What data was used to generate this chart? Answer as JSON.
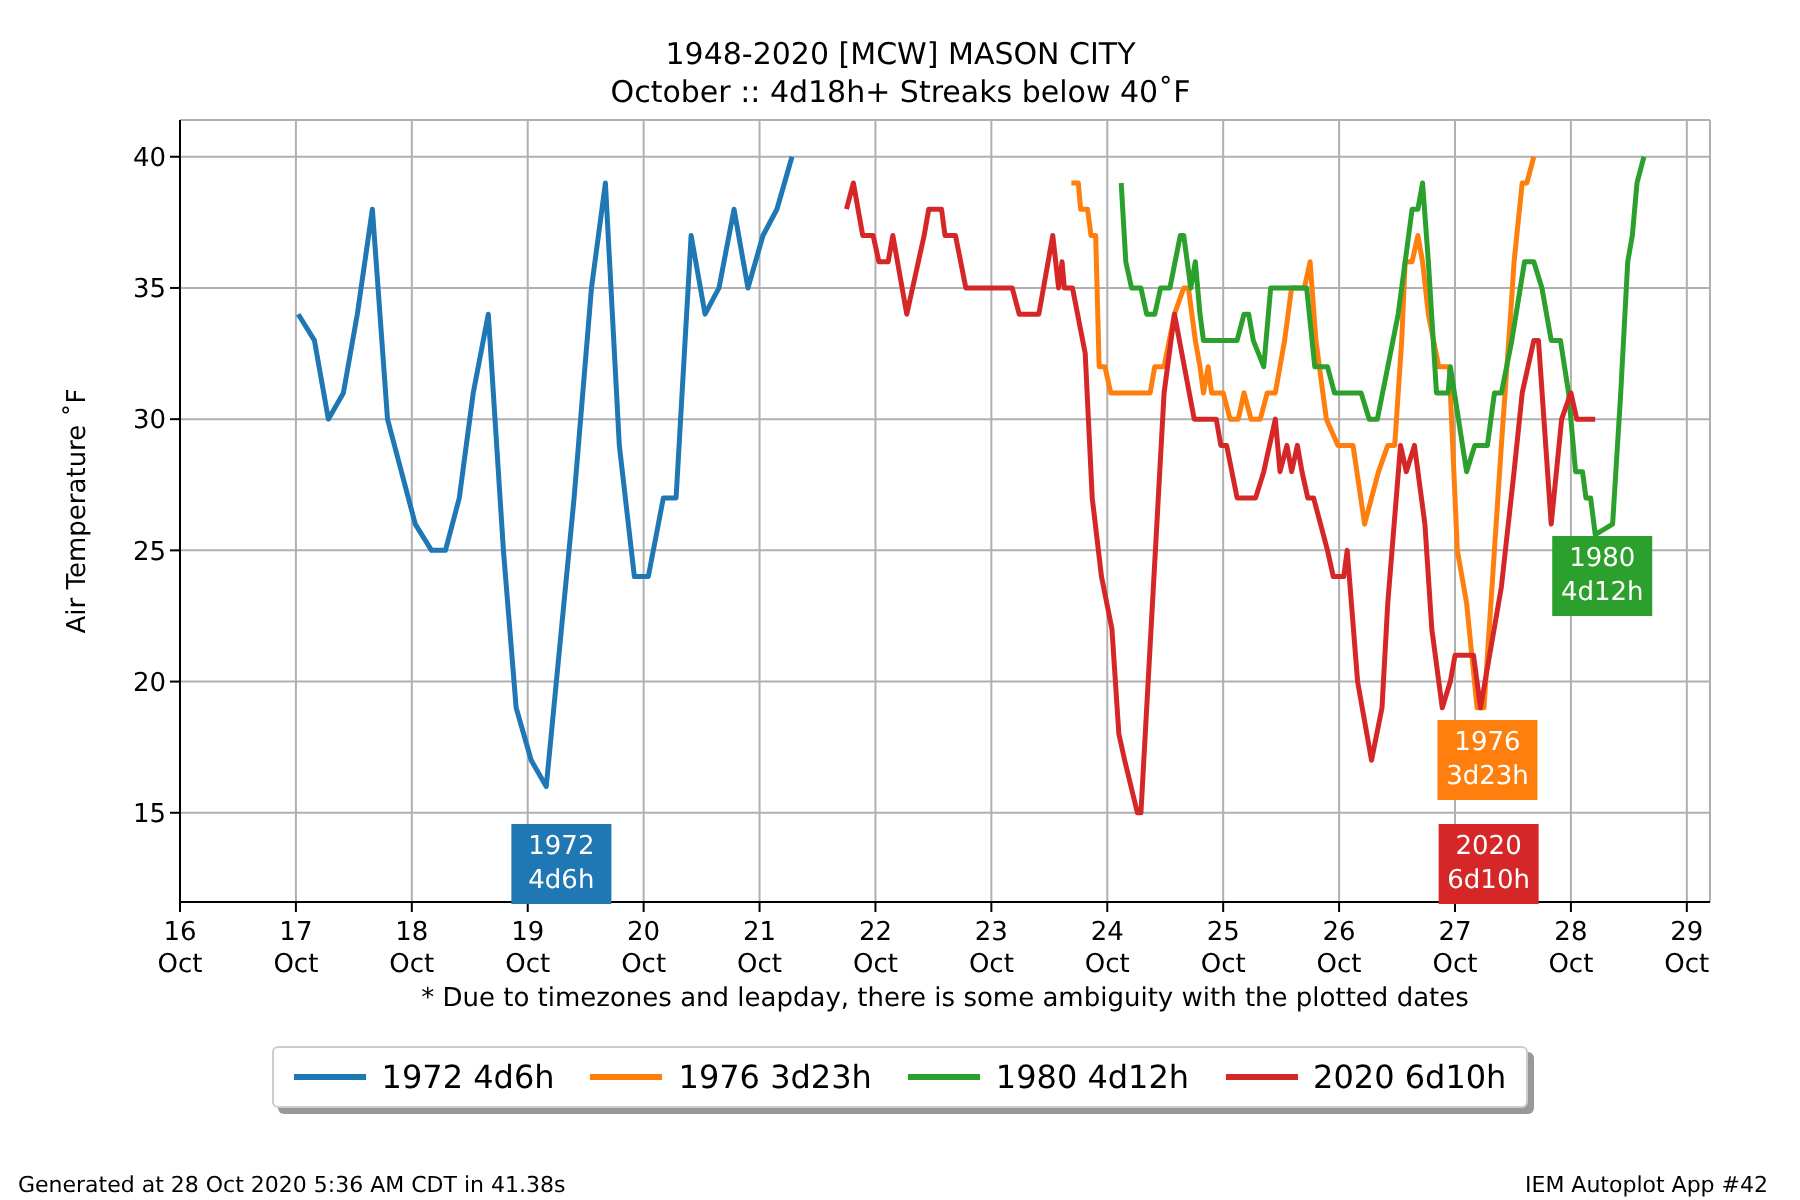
{
  "chart_data": {
    "type": "line",
    "title": "1948-2020 [MCW] MASON CITY",
    "subtitle": "October :: 4d18h+ Streaks below 40˚F",
    "ylabel": "Air Temperature ˚F",
    "xlim": [
      "--10-16",
      "--10-29T04:48"
    ],
    "ylim": [
      11.6,
      41.4
    ],
    "xticks": [
      {
        "value": "--10-16",
        "label": "16\nOct"
      },
      {
        "value": "--10-17",
        "label": "17\nOct"
      },
      {
        "value": "--10-18",
        "label": "18\nOct"
      },
      {
        "value": "--10-19",
        "label": "19\nOct"
      },
      {
        "value": "--10-20",
        "label": "20\nOct"
      },
      {
        "value": "--10-21",
        "label": "21\nOct"
      },
      {
        "value": "--10-22",
        "label": "22\nOct"
      },
      {
        "value": "--10-23",
        "label": "23\nOct"
      },
      {
        "value": "--10-24",
        "label": "24\nOct"
      },
      {
        "value": "--10-25",
        "label": "25\nOct"
      },
      {
        "value": "--10-26",
        "label": "26\nOct"
      },
      {
        "value": "--10-27",
        "label": "27\nOct"
      },
      {
        "value": "--10-28",
        "label": "28\nOct"
      },
      {
        "value": "--10-29",
        "label": "29\nOct"
      }
    ],
    "yticks": [
      15,
      20,
      25,
      30,
      35,
      40
    ],
    "grid": true,
    "legend": "bottom",
    "marker": "none",
    "line_style": "solid",
    "series": [
      {
        "name": "1972 4d6h",
        "color": "#1f77b4",
        "x": [
          "--10-17T00:29",
          "--10-17T03:50",
          "--10-17T06:43",
          "--10-17T09:50",
          "--10-17T12:43",
          "--10-17T15:50",
          "--10-17T18:58",
          "--10-18T00:43",
          "--10-18T04:05",
          "--10-18T06:58",
          "--10-18T09:50",
          "--10-18T12:43",
          "--10-18T15:50",
          "--10-18T18:58",
          "--10-18T21:36",
          "--10-19T00:43",
          "--10-19T03:50",
          "--10-19T06:58",
          "--10-19T09:36",
          "--10-19T13:12",
          "--10-19T16:05",
          "--10-19T18:58",
          "--10-19T22:05",
          "--10-20T00:58",
          "--10-20T04:05",
          "--10-20T06:43",
          "--10-20T09:50",
          "--10-20T12:43",
          "--10-20T15:36",
          "--10-20T18:43",
          "--10-20T21:36",
          "--10-21T00:43",
          "--10-21T03:36",
          "--10-21T06:43"
        ],
        "values": [
          34,
          33,
          30,
          31,
          34,
          38,
          30,
          26,
          25,
          25,
          27,
          31,
          34,
          25,
          19,
          17,
          16,
          null,
          27,
          35,
          39,
          29,
          24,
          24,
          27,
          27,
          37,
          34,
          35,
          38,
          35,
          37,
          38,
          40
        ]
      },
      {
        "name": "1976 3d23h",
        "color": "#ff7f0e",
        "x": [
          "--10-23T16:34",
          "--10-23T18:00",
          "--10-23T18:29",
          "--10-23T19:55",
          "--10-23T20:38",
          "--10-23T21:36",
          "--10-23T22:19",
          "--10-23T23:31",
          "--10-24T00:43",
          "--10-24T08:53",
          "--10-24T09:50",
          "--10-24T11:46",
          "--10-24T13:55",
          "--10-24T15:50",
          "--10-24T16:48",
          "--10-24T18:14",
          "--10-24T19:12",
          "--10-24T19:55",
          "--10-24T20:53",
          "--10-24T21:36",
          "--10-25T00:00",
          "--10-25T01:26",
          "--10-25T03:07",
          "--10-25T04:19",
          "--10-25T05:46",
          "--10-25T07:41",
          "--10-25T09:07",
          "--10-25T10:48",
          "--10-25T12:43",
          "--10-25T14:10",
          "--10-25T16:48",
          "--10-25T18:00",
          "--10-25T19:12",
          "--10-25T21:22",
          "--10-25T23:46",
          "--10-26T02:53",
          "--10-26T05:17",
          "--10-26T06:43",
          "--10-26T08:10",
          "--10-26T10:05",
          "--10-26T11:31",
          "--10-26T12:58",
          "--10-26T13:41",
          "--10-26T15:07",
          "--10-26T16:19",
          "--10-26T17:17",
          "--10-26T18:29",
          "--10-26T20:38",
          "--10-26T22:48",
          "--10-27T00:29",
          "--10-27T02:24",
          "--10-27T04:34",
          "--10-27T06:00",
          "--10-27T06:43",
          "--10-27T09:36",
          "--10-27T11:31",
          "--10-27T12:14",
          "--10-27T13:55",
          "--10-27T14:53",
          "--10-27T16:19"
        ],
        "values": [
          39,
          39,
          38,
          38,
          37,
          37,
          32,
          32,
          31,
          31,
          32,
          32,
          34,
          35,
          35,
          33,
          32,
          31,
          32,
          31,
          31,
          30,
          30,
          31,
          30,
          30,
          31,
          31,
          33,
          35,
          35,
          36,
          33,
          30,
          29,
          29,
          26,
          27,
          28,
          29,
          29,
          33,
          36,
          36,
          37,
          36,
          34,
          32,
          32,
          25,
          23,
          19,
          19,
          null,
          29,
          34,
          36,
          39,
          39,
          40
        ]
      },
      {
        "name": "1980 4d12h",
        "color": "#2ca02c",
        "x": [
          "--10-24T02:53",
          "--10-24T03:50",
          "--10-24T05:02",
          "--10-24T06:58",
          "--10-24T08:10",
          "--10-24T09:50",
          "--10-24T11:02",
          "--10-24T12:58",
          "--10-24T15:07",
          "--10-24T15:50",
          "--10-24T17:17",
          "--10-24T18:14",
          "--10-24T19:12",
          "--10-24T19:55",
          "--10-25T02:53",
          "--10-25T04:19",
          "--10-25T05:17",
          "--10-25T06:14",
          "--10-25T08:24",
          "--10-25T09:50",
          "--10-25T17:17",
          "--10-25T18:58",
          "--10-25T21:36",
          "--10-25T23:02",
          "--10-26T04:34",
          "--10-26T06:14",
          "--10-26T07:55",
          "--10-26T10:05",
          "--10-26T12:14",
          "--10-26T13:41",
          "--10-26T15:07",
          "--10-26T16:19",
          "--10-26T17:17",
          "--10-26T18:29",
          "--10-26T20:10",
          "--10-26T22:34",
          "--10-26T23:02",
          "--10-27T00:43",
          "--10-27T02:24",
          "--10-27T04:05",
          "--10-27T06:43",
          "--10-27T08:10",
          "--10-27T09:36",
          "--10-27T11:46",
          "--10-27T14:24",
          "--10-27T16:19",
          "--10-27T18:00",
          "--10-27T19:55",
          "--10-27T21:50",
          "--10-27T23:31",
          "--10-28T00:58",
          "--10-28T02:24",
          "--10-28T03:07",
          "--10-28T04:05",
          "--10-28T05:02",
          "--10-28T06:29",
          "--10-28T08:38",
          "--10-28T10:19",
          "--10-28T11:46",
          "--10-28T12:43",
          "--10-28T13:41",
          "--10-28T15:07"
        ],
        "values": [
          39,
          36,
          35,
          35,
          34,
          34,
          35,
          35,
          37,
          37,
          35,
          36,
          34,
          33,
          33,
          34,
          34,
          33,
          32,
          35,
          35,
          32,
          32,
          31,
          31,
          30,
          30,
          32,
          34,
          36,
          38,
          38,
          39,
          36,
          31,
          31,
          32,
          30,
          28,
          29,
          29,
          31,
          31,
          33,
          36,
          36,
          35,
          33,
          33,
          31,
          28,
          28,
          27,
          27,
          25.6,
          null,
          26,
          31,
          36,
          37,
          39,
          40
        ]
      },
      {
        "name": "2020 6d10h",
        "color": "#d62728",
        "x": [
          "--10-21T18:00",
          "--10-21T19:26",
          "--10-21T21:22",
          "--10-21T23:31",
          "--10-22T00:43",
          "--10-22T02:38",
          "--10-22T03:36",
          "--10-22T06:29",
          "--10-22T07:41",
          "--10-22T08:53",
          "--10-22T10:05",
          "--10-22T11:02",
          "--10-22T13:41",
          "--10-22T14:24",
          "--10-22T16:34",
          "--10-22T18:43",
          "--10-23T04:19",
          "--10-23T05:46",
          "--10-23T09:50",
          "--10-23T12:43",
          "--10-23T13:55",
          "--10-23T14:38",
          "--10-23T15:07",
          "--10-23T16:48",
          "--10-23T19:26",
          "--10-23T20:53",
          "--10-23T22:48",
          "--10-24T00:58",
          "--10-24T02:24",
          "--10-24T03:36",
          "--10-24T06:14",
          "--10-24T06:58",
          "--10-24T11:46",
          "--10-24T13:55",
          "--10-24T18:00",
          "--10-24T22:34",
          "--10-24T23:31",
          "--10-25T00:43",
          "--10-25T02:53",
          "--10-25T06:43",
          "--10-25T08:24",
          "--10-25T10:48",
          "--10-25T11:46",
          "--10-25T13:12",
          "--10-25T14:10",
          "--10-25T15:22",
          "--10-25T16:19",
          "--10-25T17:31",
          "--10-25T18:43",
          "--10-25T21:36",
          "--10-25T22:48",
          "--10-26T00:58",
          "--10-26T01:41",
          "--10-26T03:50",
          "--10-26T06:43",
          "--10-26T08:53",
          "--10-26T10:05",
          "--10-26T12:43",
          "--10-26T13:55",
          "--10-26T15:36",
          "--10-26T17:46",
          "--10-26T19:12",
          "--10-26T21:22",
          "--10-26T23:02",
          "--10-27T00:00",
          "--10-27T03:50",
          "--10-27T05:17",
          "--10-27T06:58",
          "--10-27T09:36",
          "--10-27T12:14",
          "--10-27T13:55",
          "--10-27T16:19",
          "--10-27T17:17",
          "--10-27T19:55",
          "--10-27T22:05",
          "--10-28T00:00",
          "--10-28T01:12",
          "--10-28T05:02"
        ],
        "values": [
          38,
          39,
          37,
          37,
          36,
          36,
          37,
          34,
          35,
          36,
          37,
          38,
          38,
          37,
          37,
          35,
          35,
          34,
          34,
          37,
          35,
          36,
          35,
          35,
          32.5,
          27,
          24,
          22,
          18,
          17,
          15,
          15,
          31,
          34,
          30,
          30,
          29,
          29,
          27,
          27,
          28,
          30,
          28,
          29,
          28,
          29,
          28,
          27,
          27,
          25,
          24,
          24,
          25,
          20,
          17,
          19,
          23,
          29,
          28,
          29,
          26,
          22,
          19,
          20,
          21,
          21,
          19,
          null,
          23.6,
          28,
          31,
          33,
          33,
          26,
          30,
          31,
          30,
          30
        ]
      }
    ],
    "annotations": [
      "1972\n4d6h",
      "1976\n3d23h",
      "1980\n4d12h",
      "2020\n6d10h",
      "* Due to timezones and leapday, there is some ambiguity with the plotted dates",
      "Generated at 28 Oct 2020 5:36 AM CDT in 41.38s",
      "IEM Autoplot App #42"
    ]
  }
}
